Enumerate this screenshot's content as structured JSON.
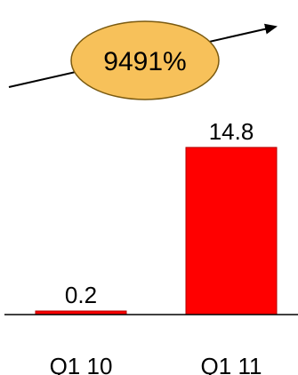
{
  "chart_data": {
    "type": "bar",
    "categories": [
      "Q1 10",
      "Q1 11"
    ],
    "values": [
      0.2,
      14.8
    ],
    "data_labels": [
      "0.2",
      "14.8"
    ],
    "title": "",
    "xlabel": "",
    "ylabel": "",
    "ylim": [
      0,
      15.5
    ],
    "grid": false,
    "legend": "none",
    "annotation": {
      "text": "9491%",
      "shape": "ellipse",
      "arrow": "up-right",
      "fill_color": "#f7c15a",
      "stroke_color": "#7a5a10"
    },
    "bar_color": "#ff0000",
    "bar_edge_color": "#b30000"
  }
}
